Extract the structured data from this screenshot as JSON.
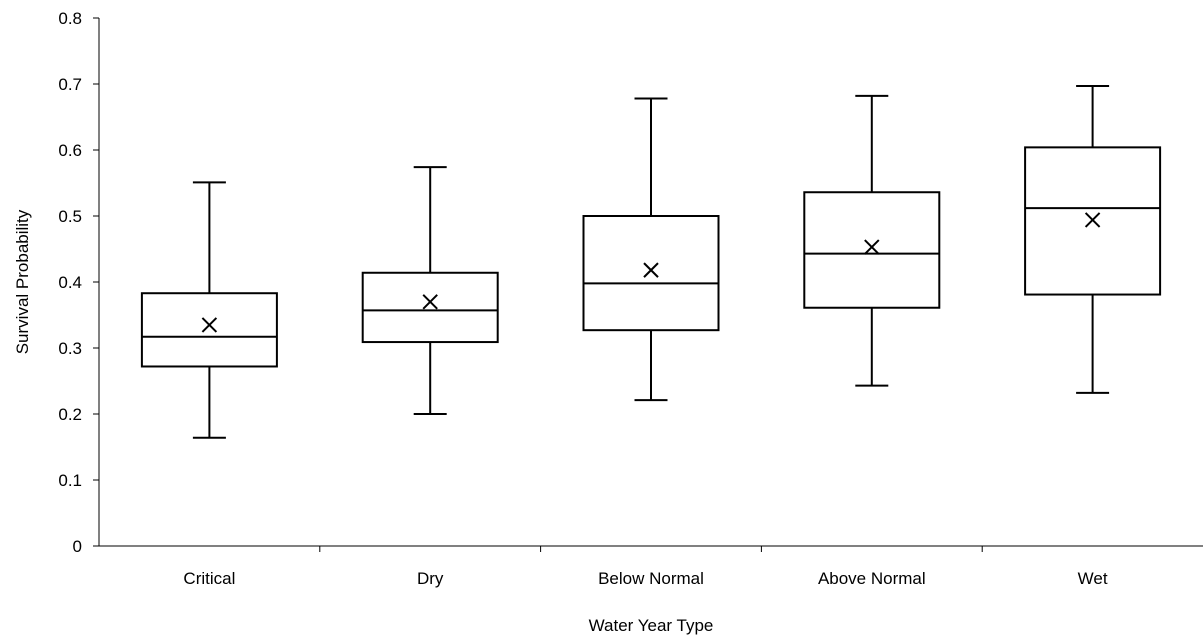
{
  "chart_data": {
    "type": "box",
    "xlabel": "Water Year Type",
    "ylabel": "Survival Probability",
    "ylim": [
      0,
      0.8
    ],
    "yticks": [
      0,
      0.1,
      0.2,
      0.3,
      0.4,
      0.5,
      0.6,
      0.7,
      0.8
    ],
    "ytick_labels": [
      "0",
      "0.1",
      "0.2",
      "0.3",
      "0.4",
      "0.5",
      "0.6",
      "0.7",
      "0.8"
    ],
    "grid": false,
    "legend": "none",
    "categories": [
      "Critical",
      "Dry",
      "Below Normal",
      "Above Normal",
      "Wet"
    ],
    "boxes": [
      {
        "category": "Critical",
        "min": 0.164,
        "q1": 0.272,
        "median": 0.317,
        "q3": 0.383,
        "max": 0.551,
        "mean": 0.335
      },
      {
        "category": "Dry",
        "min": 0.2,
        "q1": 0.309,
        "median": 0.357,
        "q3": 0.414,
        "max": 0.574,
        "mean": 0.37
      },
      {
        "category": "Below Normal",
        "min": 0.221,
        "q1": 0.327,
        "median": 0.398,
        "q3": 0.5,
        "max": 0.678,
        "mean": 0.418
      },
      {
        "category": "Above Normal",
        "min": 0.243,
        "q1": 0.361,
        "median": 0.443,
        "q3": 0.536,
        "max": 0.682,
        "mean": 0.453
      },
      {
        "category": "Wet",
        "min": 0.232,
        "q1": 0.381,
        "median": 0.512,
        "q3": 0.604,
        "max": 0.697,
        "mean": 0.494
      }
    ]
  }
}
